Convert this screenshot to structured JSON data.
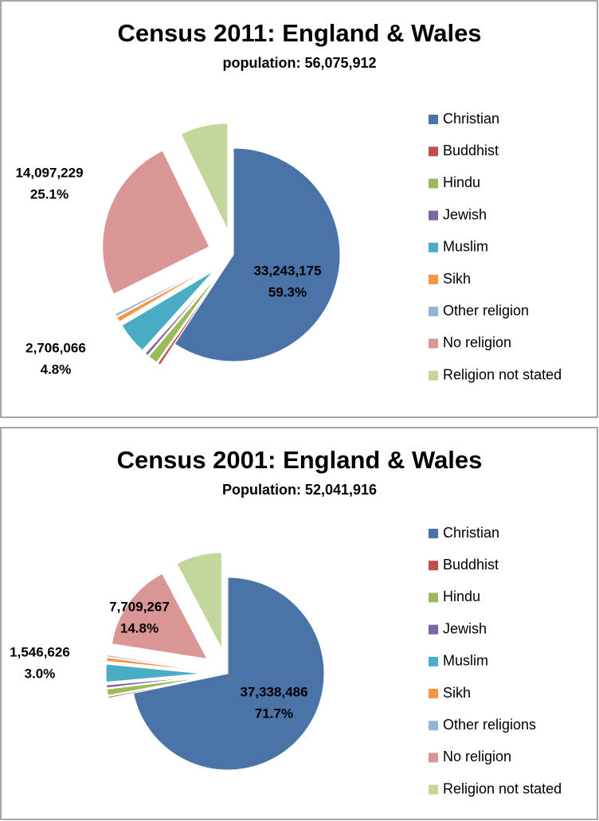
{
  "chart_data": [
    {
      "type": "pie",
      "title": "Census 2011: England & Wales",
      "subtitle": "population: 56,075,912",
      "categories": [
        "Christian",
        "Buddhist",
        "Hindu",
        "Jewish",
        "Muslim",
        "Sikh",
        "Other religion",
        "No religion",
        "Religion not stated"
      ],
      "values": [
        33243175,
        247743,
        816633,
        263346,
        2706066,
        423158,
        240530,
        14097229,
        4038032
      ],
      "value_labels": [
        "33,243,175",
        null,
        null,
        null,
        "2,706,066",
        null,
        null,
        "14,097,229",
        null
      ],
      "percent_labels": [
        "59.3%",
        null,
        null,
        null,
        "4.8%",
        null,
        null,
        "25.1%",
        null
      ],
      "colors": [
        "#4a73a8",
        "#c0504d",
        "#9bbb59",
        "#8064a2",
        "#4bacc6",
        "#f79646",
        "#95b3d7",
        "#d99694",
        "#c3d69b"
      ],
      "legend": "right"
    },
    {
      "type": "pie",
      "title": "Census 2001: England & Wales",
      "subtitle": "Population: 52,041,916",
      "categories": [
        "Christian",
        "Buddhist",
        "Hindu",
        "Jewish",
        "Muslim",
        "Sikh",
        "Other religions",
        "No religion",
        "Religion not stated"
      ],
      "values": [
        37338486,
        144453,
        552421,
        259927,
        1546626,
        329358,
        150720,
        7709267,
        4010658
      ],
      "value_labels": [
        "37,338,486",
        null,
        null,
        null,
        "1,546,626",
        null,
        null,
        "7,709,267",
        null
      ],
      "percent_labels": [
        "71.7%",
        null,
        null,
        null,
        "3.0%",
        null,
        null,
        "14.8%",
        null
      ],
      "colors": [
        "#4a73a8",
        "#c0504d",
        "#9bbb59",
        "#8064a2",
        "#4bacc6",
        "#f79646",
        "#95b3d7",
        "#d99694",
        "#c3d69b"
      ],
      "legend": "right"
    }
  ]
}
